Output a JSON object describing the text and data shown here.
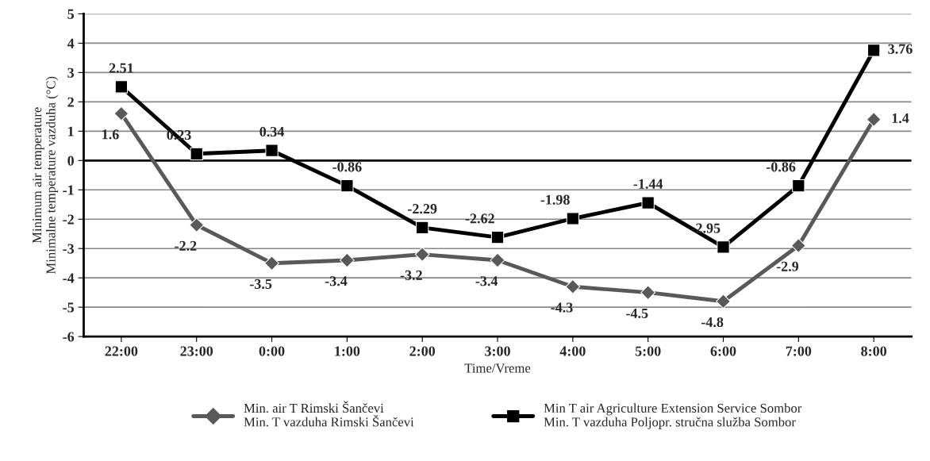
{
  "chart_data": {
    "type": "line",
    "xlabel": "Time/Vreme",
    "ylabel": "Minimum air temperature\nMinimalne temperature vazduha (°C)",
    "categories": [
      "22:00",
      "23:00",
      "0:00",
      "1:00",
      "2:00",
      "3:00",
      "4:00",
      "5:00",
      "6:00",
      "7:00",
      "8:00"
    ],
    "series": [
      {
        "name": "Min. air T Rimski Šančevi\nMin. T vazduha Rimski Šančevi",
        "color": "#595959",
        "marker": "diamond",
        "values": [
          1.6,
          -2.2,
          -3.5,
          -3.4,
          -3.2,
          -3.4,
          -4.3,
          -4.5,
          -4.8,
          -2.9,
          1.4
        ]
      },
      {
        "name": "Min T air Agriculture Extension Service Sombor\nMin. T vazduha Poljopr. stručna služba Sombor",
        "color": "#000000",
        "marker": "square",
        "values": [
          2.51,
          0.23,
          0.34,
          -0.86,
          -2.29,
          -2.62,
          -1.98,
          -1.44,
          -2.95,
          -0.86,
          3.76
        ]
      }
    ],
    "ylim": [
      -6,
      5
    ],
    "yticks": [
      -6,
      -5,
      -4,
      -3,
      -2,
      -1,
      0,
      1,
      2,
      3,
      4,
      5
    ],
    "grid": "y",
    "legend": "bottom",
    "data_labels": true,
    "line_style": "solid"
  }
}
